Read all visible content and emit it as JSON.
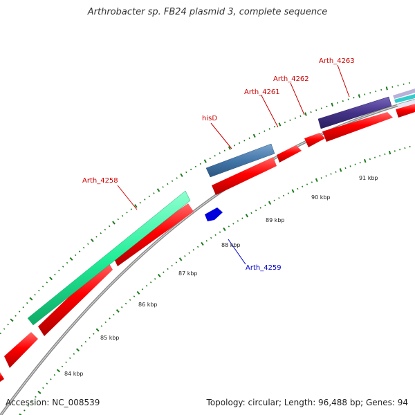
{
  "title": "Arthrobacter sp. FB24 plasmid 3, complete sequence",
  "footer": {
    "accession": "Accession: NC_008539",
    "summary": "Topology: circular; Length: 96,488 bp; Genes: 94"
  },
  "colors": {
    "cds": "#ff0000",
    "backbone": "#8a8a8a",
    "tick": "#1a7a1a",
    "label_red": "#cc0000",
    "label_blue": "#0000cc"
  },
  "tick_labels": [
    {
      "kbp": 84,
      "text": "84 kbp"
    },
    {
      "kbp": 85,
      "text": "85 kbp"
    },
    {
      "kbp": 86,
      "text": "86 kbp"
    },
    {
      "kbp": 87,
      "text": "87 kbp"
    },
    {
      "kbp": 88,
      "text": "88 kbp"
    },
    {
      "kbp": 89,
      "text": "89 kbp"
    },
    {
      "kbp": 90,
      "text": "90 kbp"
    },
    {
      "kbp": 91,
      "text": "91 kbp"
    }
  ],
  "gene_labels": [
    {
      "name": "Arth_4258",
      "color": "#cc0000"
    },
    {
      "name": "Arth_4259",
      "color": "#0000cc"
    },
    {
      "name": "hisD",
      "color": "#cc0000"
    },
    {
      "name": "Arth_4261",
      "color": "#cc0000"
    },
    {
      "name": "Arth_4262",
      "color": "#cc0000"
    },
    {
      "name": "Arth_4263",
      "color": "#cc0000"
    }
  ],
  "feature_colors": {
    "aqua": "#22ee99",
    "steel": "#4477aa",
    "purple": "#443388",
    "blue": "#0000dd"
  }
}
